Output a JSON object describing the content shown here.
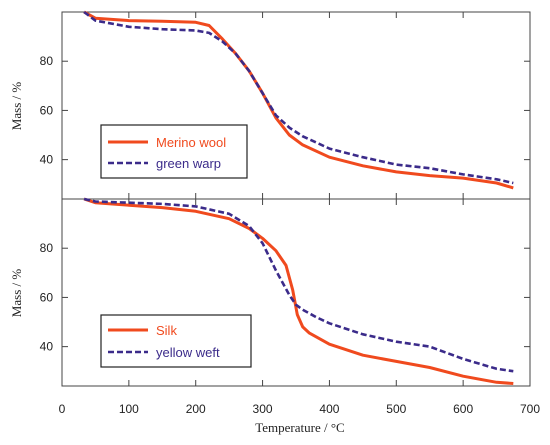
{
  "chart_data": [
    {
      "type": "line",
      "ylabel": "Mass / %",
      "xlim": [
        0,
        700
      ],
      "ylim": [
        24,
        100
      ],
      "yticks": [
        40,
        60,
        80
      ],
      "grid": false,
      "legend_position": "lower-left",
      "series": [
        {
          "name": "Merino wool",
          "color": "#f04a1e",
          "style": "solid",
          "x": [
            33,
            50,
            100,
            150,
            200,
            220,
            240,
            260,
            280,
            300,
            320,
            340,
            360,
            400,
            450,
            500,
            550,
            600,
            650,
            675
          ],
          "y": [
            100,
            97.5,
            96.5,
            96.2,
            95.8,
            94.5,
            89,
            83,
            76,
            67,
            57,
            50,
            46,
            41,
            37.5,
            35,
            33.5,
            32.5,
            30.5,
            28.5
          ]
        },
        {
          "name": "green warp",
          "color": "#3b2b8a",
          "style": "dashed",
          "x": [
            33,
            50,
            100,
            150,
            200,
            220,
            240,
            260,
            280,
            300,
            320,
            340,
            360,
            400,
            450,
            500,
            550,
            600,
            650,
            675
          ],
          "y": [
            100,
            96.5,
            94,
            93,
            92.5,
            91.5,
            88,
            83,
            76,
            67,
            58,
            53,
            49.5,
            44.5,
            41,
            38,
            36.5,
            34,
            32,
            30.5
          ]
        }
      ]
    },
    {
      "type": "line",
      "xlabel": "Temperature / °C",
      "ylabel": "Mass / %",
      "xlim": [
        0,
        700
      ],
      "ylim": [
        24,
        100
      ],
      "xticks": [
        0,
        100,
        200,
        300,
        400,
        500,
        600,
        700
      ],
      "yticks": [
        40,
        60,
        80
      ],
      "grid": false,
      "legend_position": "lower-left",
      "series": [
        {
          "name": "Silk",
          "color": "#f04a1e",
          "style": "solid",
          "x": [
            33,
            50,
            100,
            150,
            200,
            250,
            280,
            300,
            320,
            335,
            345,
            352,
            360,
            370,
            400,
            450,
            500,
            550,
            600,
            650,
            675
          ],
          "y": [
            100,
            98.5,
            97.5,
            96.5,
            95,
            92,
            88,
            84,
            79,
            73,
            63,
            53,
            48,
            45.5,
            41,
            36.5,
            34,
            31.5,
            28,
            25.5,
            25
          ]
        },
        {
          "name": "yellow weft",
          "color": "#3b2b8a",
          "style": "dashed",
          "x": [
            33,
            50,
            100,
            150,
            200,
            250,
            280,
            300,
            320,
            340,
            350,
            360,
            380,
            400,
            450,
            500,
            550,
            600,
            650,
            675
          ],
          "y": [
            100,
            99,
            98.5,
            98,
            97,
            94,
            89,
            82,
            71,
            61,
            57,
            55,
            52,
            49.5,
            45,
            42,
            40,
            35,
            31,
            30
          ]
        }
      ]
    }
  ]
}
